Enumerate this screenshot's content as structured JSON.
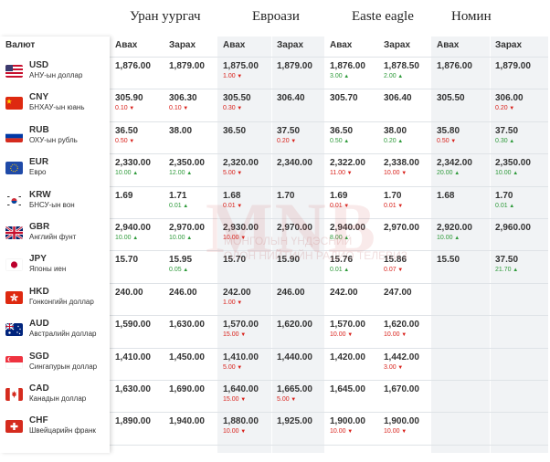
{
  "currency_header": "Валют",
  "col_buy": "Авах",
  "col_sell": "Зарах",
  "watermark": {
    "big": "МNB",
    "line1": "МОНГОЛЫН ҮНДЭСНИЙ",
    "line2": "ОЛОН НИЙТИЙН РАДИО ТЕЛЕВИЗ"
  },
  "colors": {
    "up": "#2e9a3a",
    "down": "#d9221c",
    "shaded": "#f1f3f5"
  },
  "banks": [
    {
      "name": "Уран уургач",
      "shaded": false
    },
    {
      "name": "Евроази",
      "shaded": true
    },
    {
      "name": "Easte eagle",
      "shaded": false
    },
    {
      "name": "Номин",
      "shaded": true
    }
  ],
  "currencies": [
    {
      "code": "USD",
      "name": "АНУ-ын доллар",
      "flag": "us-flag-icon"
    },
    {
      "code": "CNY",
      "name": "БНХАУ-ын юань",
      "flag": "cn-flag-icon"
    },
    {
      "code": "RUB",
      "name": "ОХУ-ын рубль",
      "flag": "ru-flag-icon"
    },
    {
      "code": "EUR",
      "name": "Евро",
      "flag": "eu-flag-icon"
    },
    {
      "code": "KRW",
      "name": "БНСУ-ын вон",
      "flag": "kr-flag-icon"
    },
    {
      "code": "GBR",
      "name": "Английн фунт",
      "flag": "gb-flag-icon"
    },
    {
      "code": "JPY",
      "name": "Японы иен",
      "flag": "jp-flag-icon"
    },
    {
      "code": "HKD",
      "name": "Гонконгийн доллар",
      "flag": "hk-flag-icon"
    },
    {
      "code": "AUD",
      "name": "Австралийн доллар",
      "flag": "au-flag-icon"
    },
    {
      "code": "SGD",
      "name": "Сингапурын доллар",
      "flag": "sg-flag-icon"
    },
    {
      "code": "CAD",
      "name": "Канадын доллар",
      "flag": "ca-flag-icon"
    },
    {
      "code": "CHF",
      "name": "Швейцарийн франк",
      "flag": "ch-flag-icon"
    }
  ],
  "rates": [
    [
      [
        {
          "v": "1,876.00"
        },
        {
          "v": "1,879.00"
        }
      ],
      [
        {
          "v": "305.90",
          "c": "0.10",
          "d": "down"
        },
        {
          "v": "306.30",
          "c": "0.10",
          "d": "down"
        }
      ],
      [
        {
          "v": "36.50",
          "c": "0.50",
          "d": "down"
        },
        {
          "v": "38.00"
        }
      ],
      [
        {
          "v": "2,330.00",
          "c": "10.00",
          "d": "up"
        },
        {
          "v": "2,350.00",
          "c": "12.00",
          "d": "up"
        }
      ],
      [
        {
          "v": "1.69"
        },
        {
          "v": "1.71",
          "c": "0.01",
          "d": "up"
        }
      ],
      [
        {
          "v": "2,940.00",
          "c": "10.00",
          "d": "up"
        },
        {
          "v": "2,970.00",
          "c": "10.00",
          "d": "up"
        }
      ],
      [
        {
          "v": "15.70"
        },
        {
          "v": "15.95",
          "c": "0.05",
          "d": "up"
        }
      ],
      [
        {
          "v": "240.00"
        },
        {
          "v": "246.00"
        }
      ],
      [
        {
          "v": "1,590.00"
        },
        {
          "v": "1,630.00"
        }
      ],
      [
        {
          "v": "1,410.00"
        },
        {
          "v": "1,450.00"
        }
      ],
      [
        {
          "v": "1,630.00"
        },
        {
          "v": "1,690.00"
        }
      ],
      [
        {
          "v": "1,890.00"
        },
        {
          "v": "1,940.00"
        }
      ]
    ],
    [
      [
        {
          "v": "1,875.00",
          "c": "1.00",
          "d": "down"
        },
        {
          "v": "1,879.00"
        }
      ],
      [
        {
          "v": "305.50",
          "c": "0.30",
          "d": "down"
        },
        {
          "v": "306.40"
        }
      ],
      [
        {
          "v": "36.50"
        },
        {
          "v": "37.50",
          "c": "0.20",
          "d": "down"
        }
      ],
      [
        {
          "v": "2,320.00",
          "c": "5.00",
          "d": "down"
        },
        {
          "v": "2,340.00"
        }
      ],
      [
        {
          "v": "1.68",
          "c": "0.01",
          "d": "down"
        },
        {
          "v": "1.70"
        }
      ],
      [
        {
          "v": "2,930.00",
          "c": "10.00",
          "d": "down"
        },
        {
          "v": "2,970.00"
        }
      ],
      [
        {
          "v": "15.70"
        },
        {
          "v": "15.90"
        }
      ],
      [
        {
          "v": "242.00",
          "c": "1.00",
          "d": "down"
        },
        {
          "v": "246.00"
        }
      ],
      [
        {
          "v": "1,570.00",
          "c": "15.00",
          "d": "down"
        },
        {
          "v": "1,620.00"
        }
      ],
      [
        {
          "v": "1,410.00",
          "c": "5.00",
          "d": "down"
        },
        {
          "v": "1,440.00"
        }
      ],
      [
        {
          "v": "1,640.00",
          "c": "15.00",
          "d": "down"
        },
        {
          "v": "1,665.00",
          "c": "5.00",
          "d": "down"
        }
      ],
      [
        {
          "v": "1,880.00",
          "c": "10.00",
          "d": "down"
        },
        {
          "v": "1,925.00"
        }
      ]
    ],
    [
      [
        {
          "v": "1,876.00",
          "c": "3.00",
          "d": "up"
        },
        {
          "v": "1,878.50",
          "c": "2.00",
          "d": "up"
        }
      ],
      [
        {
          "v": "305.70"
        },
        {
          "v": "306.40"
        }
      ],
      [
        {
          "v": "36.50",
          "c": "0.50",
          "d": "up"
        },
        {
          "v": "38.00",
          "c": "0.20",
          "d": "up"
        }
      ],
      [
        {
          "v": "2,322.00",
          "c": "11.00",
          "d": "down"
        },
        {
          "v": "2,338.00",
          "c": "10.00",
          "d": "down"
        }
      ],
      [
        {
          "v": "1.69",
          "c": "0.01",
          "d": "down"
        },
        {
          "v": "1.70",
          "c": "0.01",
          "d": "down"
        }
      ],
      [
        {
          "v": "2,940.00",
          "c": "8.00",
          "d": "up"
        },
        {
          "v": "2,970.00"
        }
      ],
      [
        {
          "v": "15.76",
          "c": "0.01",
          "d": "up"
        },
        {
          "v": "15.86",
          "c": "0.07",
          "d": "down"
        }
      ],
      [
        {
          "v": "242.00"
        },
        {
          "v": "247.00"
        }
      ],
      [
        {
          "v": "1,570.00",
          "c": "10.00",
          "d": "down"
        },
        {
          "v": "1,620.00",
          "c": "10.00",
          "d": "down"
        }
      ],
      [
        {
          "v": "1,420.00"
        },
        {
          "v": "1,442.00",
          "c": "3.00",
          "d": "down"
        }
      ],
      [
        {
          "v": "1,645.00"
        },
        {
          "v": "1,670.00"
        }
      ],
      [
        {
          "v": "1,900.00",
          "c": "10.00",
          "d": "down"
        },
        {
          "v": "1,900.00",
          "c": "10.00",
          "d": "down"
        }
      ]
    ],
    [
      [
        {
          "v": "1,876.00"
        },
        {
          "v": "1,879.00"
        }
      ],
      [
        {
          "v": "305.50"
        },
        {
          "v": "306.00",
          "c": "0.20",
          "d": "down"
        }
      ],
      [
        {
          "v": "35.80",
          "c": "0.50",
          "d": "down"
        },
        {
          "v": "37.50",
          "c": "0.30",
          "d": "up"
        }
      ],
      [
        {
          "v": "2,342.00",
          "c": "20.00",
          "d": "up"
        },
        {
          "v": "2,350.00",
          "c": "10.00",
          "d": "up"
        }
      ],
      [
        {
          "v": "1.68"
        },
        {
          "v": "1.70",
          "c": "0.01",
          "d": "up"
        }
      ],
      [
        {
          "v": "2,920.00",
          "c": "10.00",
          "d": "up"
        },
        {
          "v": "2,960.00"
        }
      ],
      [
        {
          "v": "15.50"
        },
        {
          "v": "37.50",
          "c": "21.70",
          "d": "up"
        }
      ],
      null,
      null,
      null,
      null,
      null
    ]
  ]
}
